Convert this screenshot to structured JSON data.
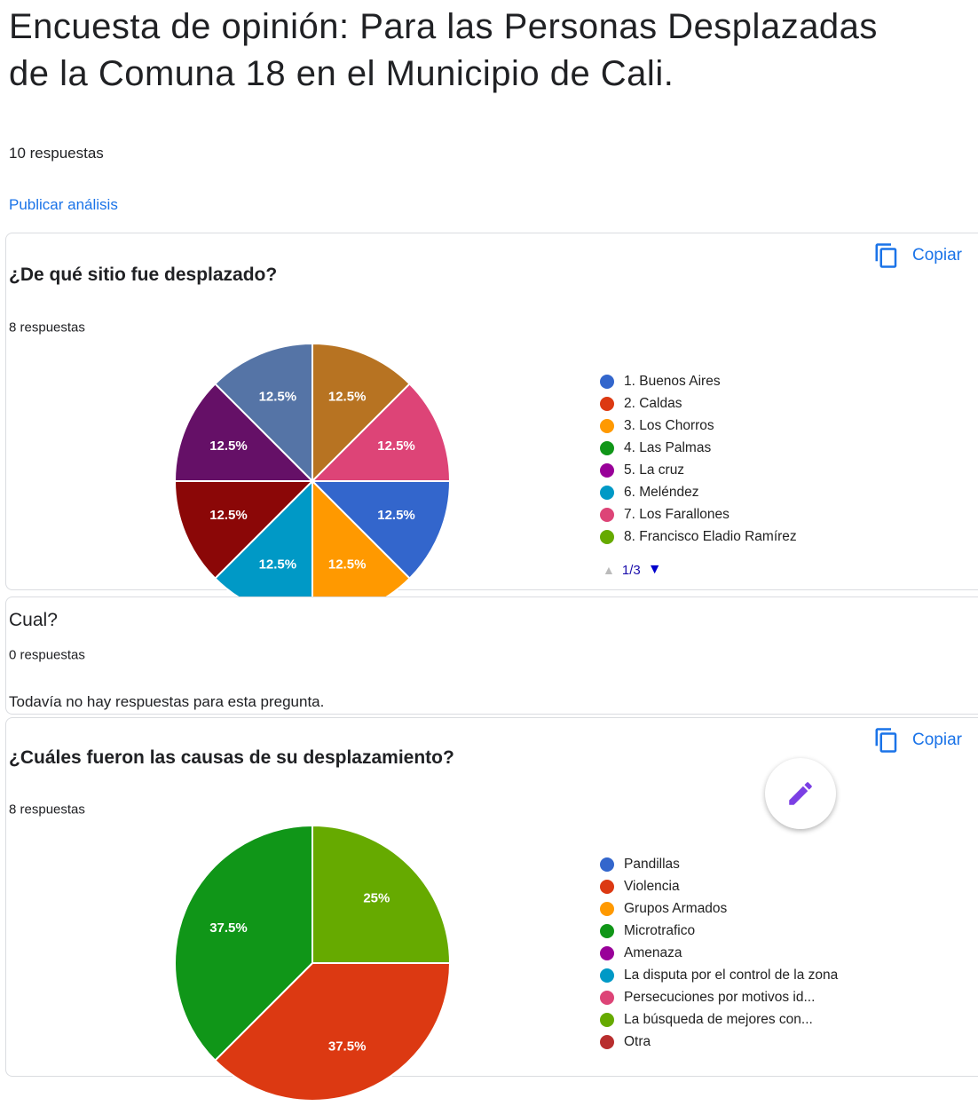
{
  "header": {
    "title": "Encuesta de opinión: Para las Personas Desplazadas de la Comuna 18 en el Municipio de Cali.",
    "responses": "10 respuestas",
    "publish": "Publicar análisis"
  },
  "questions": [
    {
      "title": "¿De qué sitio fue desplazado?",
      "responses": "8 respuestas",
      "copy": "Copiar",
      "chart": {
        "type": "pie",
        "values": [
          12.5,
          12.5,
          12.5,
          12.5,
          12.5,
          12.5,
          12.5,
          12.5
        ],
        "value_labels": [
          "12.5%",
          "12.5%",
          "12.5%",
          "12.5%",
          "12.5%",
          "12.5%",
          "12.5%",
          "12.5%"
        ],
        "colors": [
          "#b77322",
          "#dd4477",
          "#3366cc",
          "#ff9900",
          "#0099c6",
          "#8b0707",
          "#651067",
          "#5574a6"
        ],
        "legend": [
          {
            "name": "1. Buenos Aires",
            "color": "#3366cc"
          },
          {
            "name": "2. Caldas",
            "color": "#dc3912"
          },
          {
            "name": "3. Los Chorros",
            "color": "#ff9900"
          },
          {
            "name": "4. Las Palmas",
            "color": "#109618"
          },
          {
            "name": "5. La cruz",
            "color": "#990099"
          },
          {
            "name": "6. Meléndez",
            "color": "#0099c6"
          },
          {
            "name": "7. Los Farallones",
            "color": "#dd4477"
          },
          {
            "name": "8. Francisco Eladio Ramírez",
            "color": "#66aa00"
          }
        ],
        "page": "1/3"
      }
    },
    {
      "title": "Cual?",
      "responses": "0 respuestas",
      "empty": "Todavía no hay respuestas para esta pregunta."
    },
    {
      "title": "¿Cuáles fueron las causas de su desplazamiento?",
      "responses": "8 respuestas",
      "copy": "Copiar",
      "chart": {
        "type": "pie",
        "values": [
          25,
          37.5,
          37.5
        ],
        "value_labels": [
          "25%",
          "37.5%",
          "37.5%"
        ],
        "colors": [
          "#66aa00",
          "#dc3912",
          "#109618"
        ],
        "legend": [
          {
            "name": "Pandillas",
            "color": "#3366cc"
          },
          {
            "name": "Violencia",
            "color": "#dc3912"
          },
          {
            "name": "Grupos Armados",
            "color": "#ff9900"
          },
          {
            "name": "Microtrafico",
            "color": "#109618"
          },
          {
            "name": "Amenaza",
            "color": "#990099"
          },
          {
            "name": "La disputa por el control de la zona",
            "color": "#0099c6"
          },
          {
            "name": "Persecuciones por motivos id...",
            "color": "#dd4477"
          },
          {
            "name": "La búsqueda de mejores con...",
            "color": "#66aa00"
          },
          {
            "name": "Otra",
            "color": "#b82e2e"
          }
        ]
      }
    }
  ]
}
